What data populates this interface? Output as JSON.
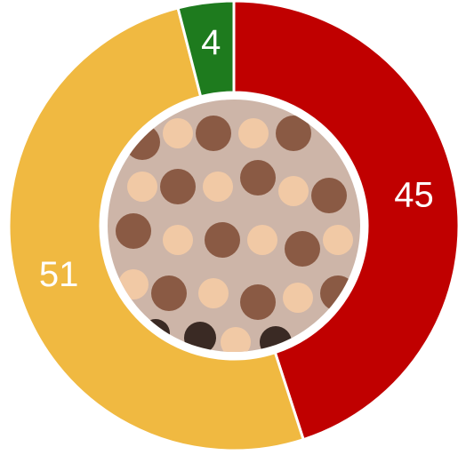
{
  "chart_data": {
    "type": "donut",
    "values": [
      45,
      51,
      4
    ],
    "colors": [
      "#c00000",
      "#f0b941",
      "#1e7b1e"
    ]
  }
}
